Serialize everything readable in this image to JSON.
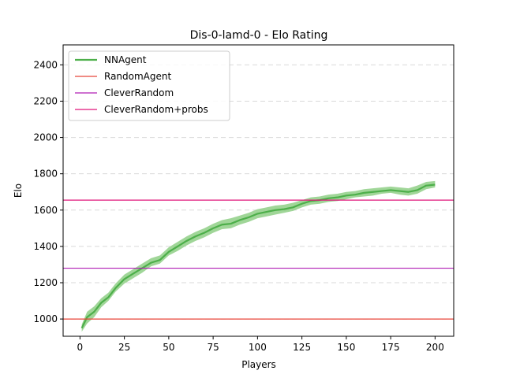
{
  "chart_data": {
    "type": "line",
    "title": "Dis-0-lamd-0 - Elo Rating",
    "xlabel": "Players",
    "ylabel": "Elo",
    "xlim": [
      -9.5,
      210.5
    ],
    "ylim": [
      905,
      2510
    ],
    "xticks": [
      0,
      25,
      50,
      75,
      100,
      125,
      150,
      175,
      200
    ],
    "yticks": [
      1000,
      1200,
      1400,
      1600,
      1800,
      2000,
      2200,
      2400
    ],
    "grid": "horizontal-dashed",
    "legend_position": "top-left",
    "series": [
      {
        "name": "NNAgent",
        "color": "#4daf4a",
        "band_color": "#8fcf86",
        "x": [
          1,
          4,
          8,
          12,
          16,
          20,
          25,
          30,
          35,
          40,
          45,
          50,
          55,
          60,
          65,
          70,
          75,
          80,
          85,
          90,
          95,
          100,
          105,
          110,
          115,
          120,
          125,
          130,
          135,
          140,
          145,
          150,
          155,
          160,
          165,
          170,
          175,
          180,
          185,
          190,
          195,
          200
        ],
        "y": [
          950,
          1010,
          1040,
          1090,
          1120,
          1170,
          1220,
          1250,
          1280,
          1310,
          1325,
          1370,
          1400,
          1430,
          1455,
          1475,
          1500,
          1520,
          1525,
          1545,
          1560,
          1580,
          1590,
          1600,
          1605,
          1615,
          1635,
          1650,
          1655,
          1665,
          1670,
          1680,
          1685,
          1695,
          1700,
          1705,
          1710,
          1705,
          1700,
          1710,
          1735,
          1740
        ],
        "low": [
          930,
          975,
          1010,
          1065,
          1100,
          1150,
          1195,
          1225,
          1255,
          1290,
          1305,
          1350,
          1375,
          1405,
          1430,
          1450,
          1475,
          1495,
          1500,
          1520,
          1535,
          1555,
          1565,
          1575,
          1585,
          1595,
          1615,
          1630,
          1635,
          1645,
          1650,
          1660,
          1670,
          1675,
          1680,
          1690,
          1695,
          1685,
          1680,
          1690,
          1715,
          1725
        ],
        "high": [
          970,
          1040,
          1070,
          1115,
          1145,
          1195,
          1245,
          1275,
          1305,
          1335,
          1350,
          1395,
          1425,
          1455,
          1480,
          1500,
          1525,
          1545,
          1555,
          1570,
          1585,
          1605,
          1615,
          1625,
          1630,
          1640,
          1655,
          1670,
          1675,
          1685,
          1690,
          1700,
          1705,
          1715,
          1720,
          1725,
          1730,
          1725,
          1720,
          1735,
          1755,
          1760
        ]
      },
      {
        "name": "RandomAgent",
        "color": "#e8463a",
        "type": "hline",
        "y": 1000
      },
      {
        "name": "CleverRandom",
        "color": "#b01cb4",
        "type": "hline",
        "y": 1280
      },
      {
        "name": "CleverRandom+probs",
        "color": "#e0157a",
        "type": "hline",
        "y": 1655
      }
    ]
  }
}
